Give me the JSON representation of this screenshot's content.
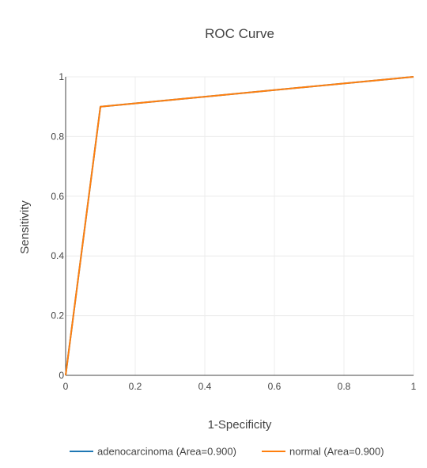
{
  "chart_data": {
    "type": "line",
    "title": "ROC Curve",
    "xlabel": "1-Specificity",
    "ylabel": "Sensitivity",
    "xlim": [
      0,
      1
    ],
    "ylim": [
      0,
      1
    ],
    "x_ticks": [
      "0",
      "0.2",
      "0.4",
      "0.6",
      "0.8",
      "1"
    ],
    "y_ticks": [
      "0",
      "0.2",
      "0.4",
      "0.6",
      "0.8",
      "1"
    ],
    "grid": true,
    "legend_position": "bottom",
    "series": [
      {
        "name": "adenocarcinoma (Area=0.900)",
        "color": "#1f77b4",
        "x": [
          0,
          0.1,
          1
        ],
        "y": [
          0,
          0.9,
          1
        ]
      },
      {
        "name": "normal (Area=0.900)",
        "color": "#ff7f0e",
        "x": [
          0,
          0.1,
          1
        ],
        "y": [
          0,
          0.9,
          1
        ]
      }
    ]
  }
}
